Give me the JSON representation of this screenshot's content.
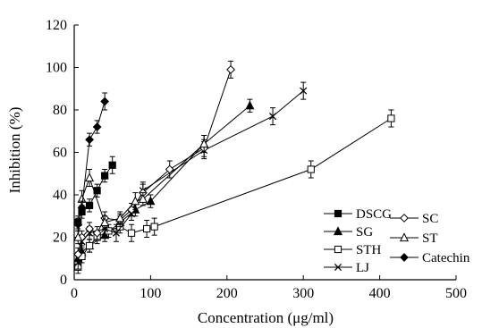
{
  "chart_data": {
    "type": "line",
    "title": "",
    "xlabel": "Concentration (μg/ml)",
    "ylabel": "Inhibition (%)",
    "xlim": [
      0,
      500
    ],
    "ylim": [
      0,
      120
    ],
    "xticks": [
      "0",
      "100",
      "200",
      "300",
      "400",
      "500"
    ],
    "yticks": [
      "0",
      "20",
      "40",
      "60",
      "80",
      "100",
      "120"
    ],
    "grid": false,
    "legend_position": "bottom-right",
    "error_bars": true,
    "series": [
      {
        "name": "DSCG",
        "marker": "filled-square",
        "x": [
          5,
          10,
          20,
          30,
          40,
          50
        ],
        "y": [
          27,
          32,
          35,
          42,
          49,
          54
        ],
        "err": [
          3,
          3,
          3,
          3,
          3,
          4
        ]
      },
      {
        "name": "SG",
        "marker": "filled-triangle",
        "x": [
          5,
          10,
          20,
          40,
          60,
          80,
          100,
          170,
          230
        ],
        "y": [
          10,
          13,
          16,
          21,
          27,
          33,
          37,
          64,
          82
        ],
        "err": [
          3,
          3,
          3,
          3,
          3,
          3,
          3,
          4,
          3
        ]
      },
      {
        "name": "STH",
        "marker": "open-square",
        "x": [
          5,
          10,
          20,
          30,
          45,
          60,
          75,
          95,
          105,
          310,
          415
        ],
        "y": [
          6,
          11,
          16,
          20,
          23,
          25,
          22,
          24,
          25,
          52,
          76
        ],
        "err": [
          3,
          3,
          3,
          3,
          3,
          3,
          4,
          4,
          4,
          4,
          4
        ]
      },
      {
        "name": "LJ",
        "marker": "x",
        "x": [
          5,
          10,
          20,
          40,
          55,
          75,
          90,
          170,
          260,
          300
        ],
        "y": [
          8,
          18,
          22,
          24,
          22,
          31,
          42,
          61,
          77,
          89
        ],
        "err": [
          3,
          3,
          3,
          4,
          4,
          3,
          4,
          4,
          4,
          4
        ]
      },
      {
        "name": "SC",
        "marker": "open-diamond",
        "x": [
          5,
          10,
          20,
          30,
          40,
          60,
          75,
          90,
          125,
          170,
          205
        ],
        "y": [
          12,
          20,
          24,
          22,
          29,
          28,
          33,
          41,
          52,
          62,
          99
        ],
        "err": [
          3,
          3,
          3,
          3,
          3,
          3,
          3,
          4,
          4,
          4,
          4
        ]
      },
      {
        "name": "ST",
        "marker": "open-triangle",
        "x": [
          5,
          10,
          20,
          40,
          60,
          80,
          90,
          170
        ],
        "y": [
          20,
          38,
          48,
          27,
          29,
          37,
          38,
          64
        ],
        "err": [
          3,
          4,
          4,
          3,
          3,
          4,
          3,
          4
        ]
      },
      {
        "name": "Catechin",
        "marker": "filled-diamond",
        "x": [
          5,
          10,
          20,
          30,
          40
        ],
        "y": [
          26,
          34,
          66,
          72,
          84
        ],
        "err": [
          3,
          3,
          3,
          3,
          4
        ]
      }
    ]
  }
}
